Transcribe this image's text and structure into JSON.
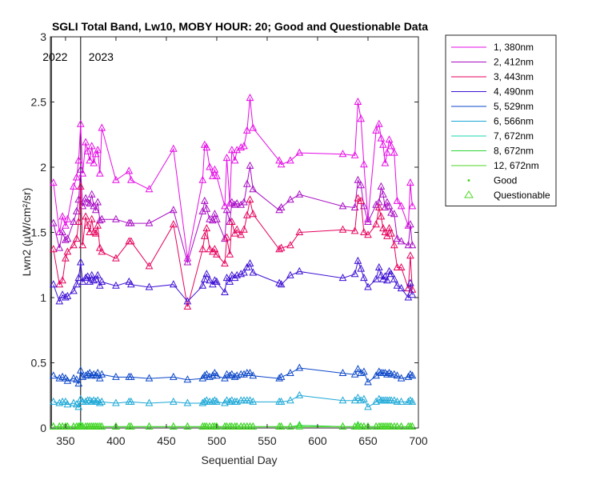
{
  "chart_data": {
    "type": "line",
    "title": "SGLI Total Band, Lw10, MOBY HOUR: 20;  Good and Questionable Data",
    "xlabel": "Sequential Day",
    "ylabel": "Lwn2 (µW/cm²/sr)",
    "xlim": [
      335,
      700
    ],
    "ylim": [
      0,
      3
    ],
    "xticks": [
      350,
      400,
      450,
      500,
      550,
      600,
      650,
      700
    ],
    "yticks": [
      0,
      0.5,
      1,
      1.5,
      2,
      2.5,
      3
    ],
    "grid": false,
    "legend_position": "outside-top-right",
    "year_markers": [
      {
        "x": 336,
        "label": "2022"
      },
      {
        "x": 365,
        "label": "2023"
      }
    ],
    "x": [
      338,
      344,
      347,
      350,
      352,
      358,
      361,
      363,
      365,
      367,
      370,
      372,
      374,
      376,
      378,
      380,
      382,
      384,
      386,
      400,
      413,
      415,
      433,
      457,
      471,
      486,
      488,
      490,
      493,
      496,
      498,
      500,
      508,
      510,
      513,
      515,
      518,
      520,
      524,
      527,
      530,
      533,
      536,
      562,
      564,
      573,
      582,
      625,
      637,
      640,
      643,
      646,
      650,
      658,
      661,
      663,
      665,
      667,
      669,
      671,
      673,
      676,
      679,
      683,
      690,
      692,
      694
    ],
    "series": [
      {
        "name": "1, 380nm",
        "color": "#e60be6",
        "values": [
          1.88,
          1.5,
          1.62,
          1.55,
          1.6,
          1.85,
          1.92,
          2.05,
          2.33,
          1.95,
          2.19,
          2.12,
          2.05,
          2.16,
          2.03,
          2.1,
          2.13,
          1.95,
          2.3,
          1.9,
          1.97,
          1.9,
          1.83,
          2.14,
          1.3,
          1.9,
          2.17,
          2.15,
          2.0,
          1.93,
          1.98,
          1.93,
          1.7,
          2.07,
          1.72,
          2.13,
          2.05,
          2.13,
          2.15,
          2.16,
          2.28,
          2.53,
          2.3,
          2.05,
          2.02,
          2.05,
          2.11,
          2.1,
          2.09,
          2.5,
          2.37,
          2.02,
          1.6,
          2.28,
          2.33,
          2.22,
          2.17,
          2.03,
          2.11,
          2.21,
          2.16,
          2.11,
          1.74,
          1.7,
          1.55,
          1.88,
          1.7
        ]
      },
      {
        "name": "2, 412nm",
        "color": "#a80cc4",
        "values": [
          1.57,
          1.38,
          1.5,
          1.44,
          1.45,
          1.58,
          1.66,
          1.75,
          1.98,
          1.7,
          1.76,
          1.73,
          1.72,
          1.79,
          1.7,
          1.67,
          1.73,
          1.59,
          1.6,
          1.6,
          1.57,
          1.57,
          1.57,
          1.67,
          1.27,
          1.66,
          1.74,
          1.68,
          1.6,
          1.59,
          1.64,
          1.6,
          1.45,
          1.67,
          1.58,
          1.73,
          1.71,
          1.72,
          1.71,
          1.73,
          1.87,
          2.01,
          1.83,
          1.67,
          1.69,
          1.75,
          1.79,
          1.7,
          1.69,
          1.9,
          1.86,
          1.7,
          1.58,
          1.71,
          1.73,
          1.85,
          1.79,
          1.69,
          1.73,
          1.7,
          1.65,
          1.64,
          1.45,
          1.43,
          1.4,
          1.56,
          1.4
        ]
      },
      {
        "name": "3, 443nm",
        "color": "#e6005c",
        "values": [
          1.37,
          1.1,
          1.13,
          1.3,
          1.35,
          1.4,
          1.45,
          1.58,
          1.85,
          1.4,
          1.62,
          1.55,
          1.5,
          1.6,
          1.5,
          1.49,
          1.55,
          1.38,
          1.35,
          1.3,
          1.43,
          1.43,
          1.24,
          1.56,
          0.93,
          1.37,
          1.47,
          1.53,
          1.37,
          1.35,
          1.37,
          1.33,
          1.26,
          1.46,
          1.33,
          1.58,
          1.49,
          1.52,
          1.48,
          1.52,
          1.63,
          1.75,
          1.64,
          1.37,
          1.38,
          1.4,
          1.5,
          1.52,
          1.51,
          1.76,
          1.74,
          1.5,
          1.48,
          1.56,
          1.69,
          1.62,
          1.53,
          1.5,
          1.47,
          1.53,
          1.49,
          1.4,
          1.23,
          1.23,
          1.07,
          1.32,
          1.06
        ]
      },
      {
        "name": "4, 490nm",
        "color": "#3d10d4",
        "values": [
          1.1,
          0.97,
          1.02,
          1.0,
          1.01,
          1.05,
          1.1,
          1.15,
          1.27,
          1.12,
          1.15,
          1.16,
          1.12,
          1.17,
          1.13,
          1.14,
          1.17,
          1.09,
          1.12,
          1.09,
          1.12,
          1.1,
          1.08,
          1.1,
          0.97,
          1.09,
          1.14,
          1.18,
          1.13,
          1.1,
          1.13,
          1.12,
          1.04,
          1.15,
          1.12,
          1.17,
          1.15,
          1.17,
          1.18,
          1.19,
          1.23,
          1.26,
          1.19,
          1.11,
          1.1,
          1.17,
          1.2,
          1.15,
          1.18,
          1.28,
          1.22,
          1.15,
          1.08,
          1.14,
          1.23,
          1.17,
          1.14,
          1.16,
          1.13,
          1.2,
          1.18,
          1.14,
          1.09,
          1.07,
          1.0,
          1.11,
          1.02
        ]
      },
      {
        "name": "5, 529nm",
        "color": "#0a46c8",
        "values": [
          0.4,
          0.38,
          0.39,
          0.38,
          0.36,
          0.38,
          0.37,
          0.34,
          0.44,
          0.39,
          0.4,
          0.41,
          0.42,
          0.4,
          0.41,
          0.4,
          0.42,
          0.38,
          0.41,
          0.39,
          0.39,
          0.39,
          0.38,
          0.39,
          0.37,
          0.38,
          0.4,
          0.41,
          0.39,
          0.4,
          0.42,
          0.4,
          0.38,
          0.41,
          0.4,
          0.41,
          0.39,
          0.4,
          0.41,
          0.41,
          0.42,
          0.42,
          0.4,
          0.38,
          0.39,
          0.42,
          0.46,
          0.42,
          0.41,
          0.45,
          0.42,
          0.43,
          0.35,
          0.4,
          0.43,
          0.42,
          0.42,
          0.42,
          0.41,
          0.42,
          0.41,
          0.41,
          0.4,
          0.38,
          0.39,
          0.41,
          0.4
        ]
      },
      {
        "name": "6, 566nm",
        "color": "#1aa7d6",
        "values": [
          0.2,
          0.19,
          0.2,
          0.2,
          0.18,
          0.19,
          0.18,
          0.16,
          0.22,
          0.2,
          0.2,
          0.21,
          0.21,
          0.2,
          0.21,
          0.2,
          0.21,
          0.19,
          0.2,
          0.19,
          0.2,
          0.2,
          0.19,
          0.2,
          0.19,
          0.19,
          0.2,
          0.21,
          0.2,
          0.2,
          0.21,
          0.2,
          0.19,
          0.21,
          0.2,
          0.21,
          0.2,
          0.2,
          0.21,
          0.21,
          0.21,
          0.21,
          0.2,
          0.2,
          0.2,
          0.21,
          0.25,
          0.21,
          0.21,
          0.23,
          0.21,
          0.22,
          0.16,
          0.2,
          0.22,
          0.21,
          0.21,
          0.21,
          0.21,
          0.21,
          0.21,
          0.21,
          0.2,
          0.2,
          0.2,
          0.21,
          0.2
        ]
      },
      {
        "name": "7, 672nm",
        "color": "#19d9b2",
        "values": [
          0.01,
          0.01,
          0.01,
          0.01,
          0.01,
          0.01,
          0.01,
          0.01,
          0.02,
          0.01,
          0.01,
          0.01,
          0.01,
          0.01,
          0.01,
          0.01,
          0.01,
          0.01,
          0.01,
          0.01,
          0.01,
          0.01,
          0.01,
          0.01,
          0.01,
          0.01,
          0.01,
          0.01,
          0.01,
          0.01,
          0.01,
          0.01,
          0.01,
          0.01,
          0.01,
          0.01,
          0.01,
          0.01,
          0.01,
          0.01,
          0.01,
          0.01,
          0.01,
          0.01,
          0.01,
          0.01,
          0.02,
          0.01,
          0.01,
          0.02,
          0.01,
          0.01,
          0.01,
          0.01,
          0.01,
          0.01,
          0.01,
          0.01,
          0.01,
          0.01,
          0.01,
          0.01,
          0.01,
          0.01,
          0.01,
          0.01,
          0.01
        ]
      },
      {
        "name": "8, 672nm",
        "color": "#2ad633",
        "values": [
          0.01,
          0.01,
          0.01,
          0.01,
          0.01,
          0.01,
          0.01,
          0.01,
          0.02,
          0.01,
          0.01,
          0.01,
          0.01,
          0.01,
          0.01,
          0.01,
          0.01,
          0.01,
          0.01,
          0.01,
          0.01,
          0.01,
          0.01,
          0.01,
          0.01,
          0.01,
          0.01,
          0.01,
          0.01,
          0.01,
          0.01,
          0.01,
          0.01,
          0.01,
          0.01,
          0.01,
          0.01,
          0.01,
          0.01,
          0.01,
          0.01,
          0.01,
          0.01,
          0.01,
          0.01,
          0.01,
          0.02,
          0.01,
          0.01,
          0.02,
          0.01,
          0.01,
          0.01,
          0.01,
          0.01,
          0.01,
          0.01,
          0.01,
          0.01,
          0.01,
          0.01,
          0.01,
          0.01,
          0.01,
          0.01,
          0.01,
          0.01
        ]
      },
      {
        "name": "12, 672nm",
        "color": "#4dd624",
        "values": [
          0.01,
          0.01,
          0.01,
          0.01,
          0.01,
          0.01,
          0.01,
          0.01,
          0.01,
          0.01,
          0.01,
          0.01,
          0.01,
          0.01,
          0.01,
          0.01,
          0.01,
          0.01,
          0.01,
          0.01,
          0.01,
          0.01,
          0.01,
          0.01,
          0.01,
          0.01,
          0.01,
          0.01,
          0.01,
          0.01,
          0.01,
          0.01,
          0.01,
          0.01,
          0.01,
          0.01,
          0.01,
          0.01,
          0.01,
          0.01,
          0.01,
          0.01,
          0.01,
          0.01,
          0.01,
          0.01,
          0.01,
          0.01,
          0.01,
          0.01,
          0.01,
          0.01,
          0.01,
          0.01,
          0.01,
          0.01,
          0.01,
          0.01,
          0.01,
          0.01,
          0.01,
          0.01,
          0.01,
          0.01,
          0.01,
          0.01,
          0.01
        ]
      }
    ],
    "legend_markers": [
      {
        "label": "Good",
        "marker": "dot",
        "color": "#4dd624"
      },
      {
        "label": "Questionable",
        "marker": "triangle",
        "color": "#4dd624"
      }
    ]
  }
}
